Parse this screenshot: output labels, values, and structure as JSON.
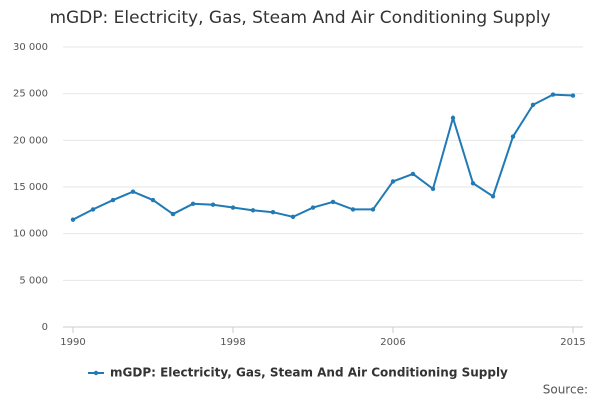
{
  "chart_data": {
    "type": "line",
    "title": "mGDP: Electricity, Gas, Steam And Air Conditioning Supply",
    "x": [
      1990,
      1991,
      1992,
      1993,
      1994,
      1995,
      1996,
      1997,
      1998,
      1999,
      2000,
      2001,
      2002,
      2003,
      2004,
      2005,
      2006,
      2007,
      2008,
      2009,
      2010,
      2011,
      2012,
      2013,
      2014,
      2015
    ],
    "series": [
      {
        "name": "mGDP: Electricity, Gas, Steam And Air Conditioning Supply",
        "color": "#1f7ab5",
        "values": [
          11500,
          12600,
          13600,
          14500,
          13600,
          12100,
          13200,
          13100,
          12800,
          12500,
          12300,
          11800,
          12800,
          13400,
          12600,
          12600,
          15600,
          16400,
          14800,
          22400,
          15400,
          14000,
          20400,
          23800,
          24900,
          24800
        ]
      }
    ],
    "xlim": [
      1989.5,
      2015.5
    ],
    "xticks": [
      1990,
      1998,
      2006,
      2015
    ],
    "ylim": [
      0,
      30000
    ],
    "yticks": [
      0,
      {
        "value": 5000,
        "label": "5 000"
      },
      {
        "value": 10000,
        "label": "10 000"
      },
      {
        "value": 15000,
        "label": "15 000"
      },
      {
        "value": 20000,
        "label": "20 000"
      },
      {
        "value": 25000,
        "label": "25 000"
      },
      {
        "value": 30000,
        "label": "30 000"
      }
    ],
    "grid": true,
    "legend": "bottom",
    "source_label": "Source:"
  }
}
